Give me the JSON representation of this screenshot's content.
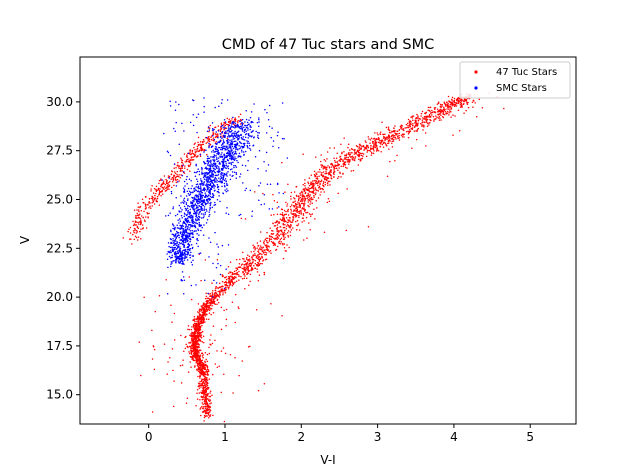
{
  "chart_data": {
    "type": "scatter",
    "title": "CMD of 47 Tuc stars and SMC",
    "xlabel": "V-I",
    "ylabel": "V",
    "xlim": [
      -0.9,
      5.6
    ],
    "ylim": [
      32.3,
      13.5
    ],
    "y_inverted": true,
    "xticks": [
      0,
      1,
      2,
      3,
      4,
      5
    ],
    "yticks": [
      15.0,
      17.5,
      20.0,
      22.5,
      25.0,
      27.5,
      30.0
    ],
    "xtick_labels": [
      "0",
      "1",
      "2",
      "3",
      "4",
      "5"
    ],
    "ytick_labels": [
      "15.0",
      "17.5",
      "20.0",
      "22.5",
      "25.0",
      "27.5",
      "30.0"
    ],
    "grid": false,
    "legend_position": "upper-right",
    "series": [
      {
        "name": "47 Tuc Stars",
        "color": "#ff0000",
        "ridge": [
          [
            0.77,
            13.9
          ],
          [
            0.74,
            15.0
          ],
          [
            0.72,
            16.0
          ],
          [
            0.7,
            16.5
          ],
          [
            0.62,
            17.0
          ],
          [
            0.6,
            17.5
          ],
          [
            0.61,
            18.0
          ],
          [
            0.65,
            18.6
          ],
          [
            0.72,
            19.3
          ],
          [
            0.85,
            20.0
          ],
          [
            1.05,
            20.8
          ],
          [
            1.3,
            21.6
          ],
          [
            1.55,
            22.5
          ],
          [
            1.75,
            23.4
          ],
          [
            1.92,
            24.3
          ],
          [
            2.05,
            25.1
          ],
          [
            2.2,
            25.9
          ],
          [
            2.4,
            26.6
          ],
          [
            2.65,
            27.2
          ],
          [
            2.95,
            27.8
          ],
          [
            3.25,
            28.4
          ],
          [
            3.6,
            29.1
          ],
          [
            3.95,
            29.8
          ],
          [
            4.2,
            30.3
          ]
        ],
        "lower_sequence": [
          [
            -0.2,
            22.8
          ],
          [
            -0.15,
            23.8
          ],
          [
            -0.05,
            24.6
          ],
          [
            0.1,
            25.3
          ],
          [
            0.25,
            25.9
          ],
          [
            0.4,
            26.5
          ],
          [
            0.55,
            27.1
          ],
          [
            0.7,
            27.7
          ],
          [
            0.85,
            28.3
          ],
          [
            1.0,
            28.8
          ],
          [
            1.2,
            29.1
          ]
        ],
        "point_count": 3400
      },
      {
        "name": "SMC Stars",
        "color": "#0000ff",
        "ridge": [
          [
            0.4,
            21.8
          ],
          [
            0.42,
            22.5
          ],
          [
            0.48,
            23.3
          ],
          [
            0.55,
            24.0
          ],
          [
            0.65,
            24.8
          ],
          [
            0.75,
            25.5
          ],
          [
            0.85,
            26.2
          ],
          [
            0.95,
            26.9
          ],
          [
            1.05,
            27.6
          ],
          [
            1.15,
            28.3
          ],
          [
            1.25,
            29.0
          ]
        ],
        "point_count": 1800
      }
    ]
  }
}
